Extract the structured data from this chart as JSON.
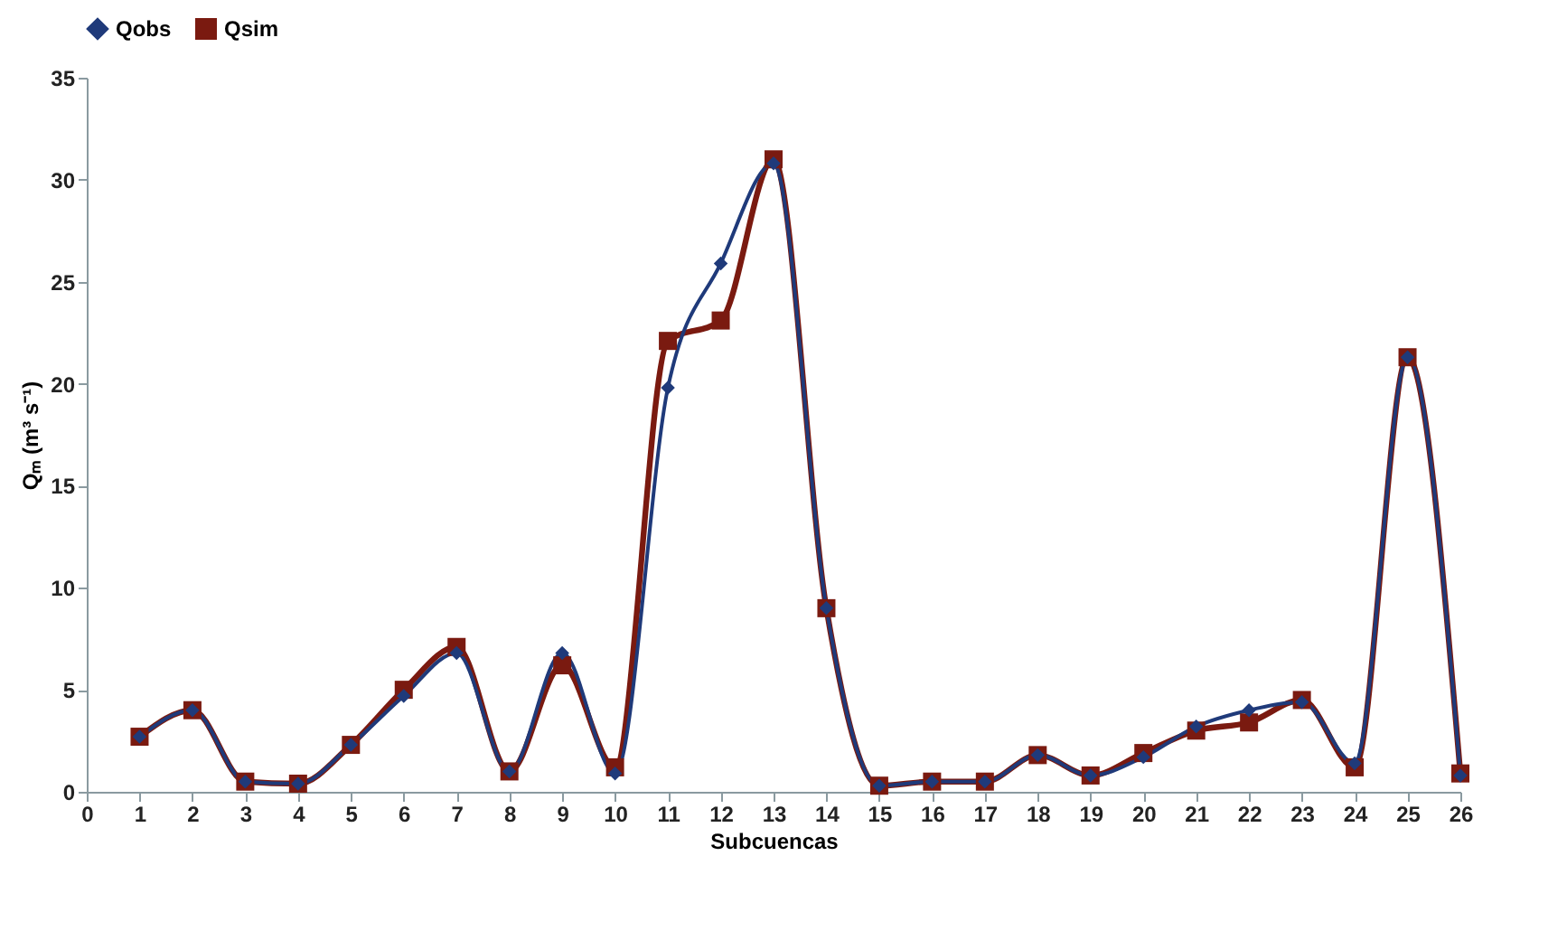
{
  "chart_data": {
    "type": "line",
    "xlabel": "Subcuencas",
    "ylabel": "Qₘ (m³ s⁻¹)",
    "x": [
      1,
      2,
      3,
      4,
      5,
      6,
      7,
      8,
      9,
      10,
      11,
      12,
      13,
      14,
      15,
      16,
      17,
      18,
      19,
      20,
      21,
      22,
      23,
      24,
      25,
      26
    ],
    "series": [
      {
        "name": "Qobs",
        "color": "#1f3a7a",
        "marker": "diamond",
        "values": [
          2.7,
          4.0,
          0.5,
          0.4,
          2.3,
          4.7,
          6.8,
          1.0,
          6.8,
          0.9,
          19.8,
          25.9,
          30.8,
          9.0,
          0.3,
          0.5,
          0.5,
          1.8,
          0.8,
          1.7,
          3.2,
          4.0,
          4.4,
          1.4,
          21.3,
          0.8
        ]
      },
      {
        "name": "Qsim",
        "color": "#7a1a10",
        "marker": "square",
        "values": [
          2.7,
          4.0,
          0.5,
          0.4,
          2.3,
          5.0,
          7.1,
          1.0,
          6.2,
          1.2,
          22.1,
          23.1,
          31.0,
          9.0,
          0.3,
          0.5,
          0.5,
          1.8,
          0.8,
          1.9,
          3.0,
          3.4,
          4.5,
          1.2,
          21.3,
          0.9
        ]
      }
    ],
    "xlim": [
      0,
      26
    ],
    "xticks": [
      0,
      1,
      2,
      3,
      4,
      5,
      6,
      7,
      8,
      9,
      10,
      11,
      12,
      13,
      14,
      15,
      16,
      17,
      18,
      19,
      20,
      21,
      22,
      23,
      24,
      25,
      26
    ],
    "ylim": [
      0,
      35
    ],
    "yticks": [
      0,
      5,
      10,
      15,
      20,
      25,
      30,
      35
    ],
    "grid": false,
    "legend": "top",
    "line_style": "solid"
  }
}
